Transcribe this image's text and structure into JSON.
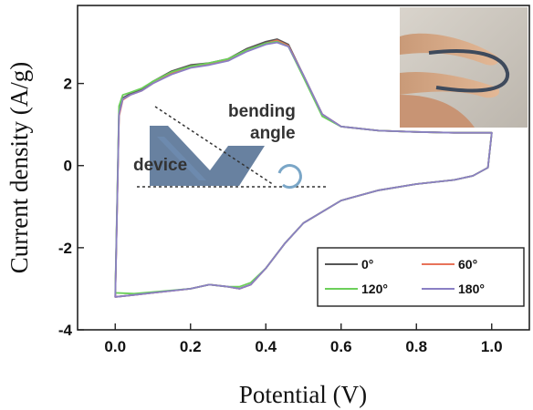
{
  "chart_data": {
    "type": "line",
    "xlabel": "Potential (V)",
    "ylabel": "Current density (A/g)",
    "xlim": [
      -0.1,
      1.1
    ],
    "ylim": [
      -4,
      3.9
    ],
    "xticks": [
      "0.0",
      "0.2",
      "0.4",
      "0.6",
      "0.8",
      "1.0"
    ],
    "yticks": [
      "-4",
      "-2",
      "0",
      "2"
    ],
    "grid": false,
    "legend_position": "bottom-right",
    "inset_annotations": {
      "device_label": "device",
      "angle_label_line1": "bending",
      "angle_label_line2": "angle"
    },
    "photo_inset": "photo of bent flexible device held between fingers (top-right)",
    "series": [
      {
        "name": "0°",
        "color": "#555555",
        "upper": {
          "x": [
            0.0,
            0.01,
            0.02,
            0.04,
            0.07,
            0.1,
            0.15,
            0.2,
            0.25,
            0.3,
            0.35,
            0.4,
            0.43,
            0.46,
            0.5,
            0.55,
            0.6,
            0.7,
            0.8,
            0.9,
            0.98,
            1.0
          ],
          "y": [
            -3.2,
            1.3,
            1.65,
            1.75,
            1.85,
            2.05,
            2.3,
            2.45,
            2.5,
            2.6,
            2.85,
            3.02,
            3.08,
            2.95,
            2.2,
            1.25,
            0.95,
            0.85,
            0.82,
            0.8,
            0.8,
            0.8
          ]
        },
        "lower": {
          "x": [
            1.0,
            0.99,
            0.95,
            0.9,
            0.8,
            0.7,
            0.6,
            0.5,
            0.45,
            0.4,
            0.36,
            0.33,
            0.3,
            0.25,
            0.2,
            0.1,
            0.05,
            0.0
          ],
          "y": [
            0.8,
            -0.05,
            -0.25,
            -0.35,
            -0.45,
            -0.6,
            -0.85,
            -1.4,
            -1.9,
            -2.5,
            -2.9,
            -3.0,
            -2.95,
            -2.9,
            -3.0,
            -3.1,
            -3.15,
            -3.2
          ]
        }
      },
      {
        "name": "60°",
        "color": "#e8735a",
        "upper": {
          "x": [
            0.0,
            0.01,
            0.02,
            0.04,
            0.07,
            0.1,
            0.15,
            0.2,
            0.25,
            0.3,
            0.35,
            0.4,
            0.43,
            0.46,
            0.5,
            0.55,
            0.6,
            0.7,
            0.8,
            0.9,
            0.98,
            1.0
          ],
          "y": [
            -3.2,
            1.2,
            1.6,
            1.72,
            1.82,
            2.0,
            2.25,
            2.42,
            2.48,
            2.58,
            2.82,
            2.98,
            3.05,
            2.92,
            2.2,
            1.25,
            0.95,
            0.85,
            0.82,
            0.8,
            0.8,
            0.8
          ]
        },
        "lower": {
          "x": [
            1.0,
            0.99,
            0.95,
            0.9,
            0.8,
            0.7,
            0.6,
            0.5,
            0.45,
            0.4,
            0.36,
            0.33,
            0.3,
            0.25,
            0.2,
            0.1,
            0.05,
            0.0
          ],
          "y": [
            0.8,
            -0.05,
            -0.25,
            -0.35,
            -0.45,
            -0.6,
            -0.85,
            -1.4,
            -1.9,
            -2.5,
            -2.9,
            -3.0,
            -2.95,
            -2.9,
            -3.0,
            -3.1,
            -3.15,
            -3.2
          ]
        }
      },
      {
        "name": "120°",
        "color": "#6ccf5a",
        "upper": {
          "x": [
            0.0,
            0.01,
            0.02,
            0.04,
            0.07,
            0.1,
            0.15,
            0.2,
            0.25,
            0.3,
            0.35,
            0.4,
            0.43,
            0.46,
            0.5,
            0.55,
            0.6,
            0.7,
            0.8,
            0.9,
            0.98,
            1.0
          ],
          "y": [
            -3.1,
            1.45,
            1.72,
            1.78,
            1.88,
            2.05,
            2.28,
            2.42,
            2.5,
            2.6,
            2.82,
            2.98,
            3.02,
            2.9,
            2.15,
            1.2,
            0.95,
            0.85,
            0.82,
            0.8,
            0.8,
            0.8
          ]
        },
        "lower": {
          "x": [
            1.0,
            0.99,
            0.95,
            0.9,
            0.8,
            0.7,
            0.6,
            0.5,
            0.45,
            0.4,
            0.36,
            0.33,
            0.3,
            0.25,
            0.2,
            0.1,
            0.05,
            0.0
          ],
          "y": [
            0.8,
            -0.05,
            -0.25,
            -0.35,
            -0.45,
            -0.6,
            -0.85,
            -1.4,
            -1.9,
            -2.5,
            -2.85,
            -2.95,
            -2.95,
            -2.9,
            -3.0,
            -3.08,
            -3.12,
            -3.1
          ]
        }
      },
      {
        "name": "180°",
        "color": "#8a7fc4",
        "upper": {
          "x": [
            0.0,
            0.01,
            0.02,
            0.04,
            0.07,
            0.1,
            0.15,
            0.2,
            0.25,
            0.3,
            0.35,
            0.4,
            0.43,
            0.46,
            0.5,
            0.55,
            0.6,
            0.7,
            0.8,
            0.9,
            0.98,
            1.0
          ],
          "y": [
            -3.2,
            1.25,
            1.62,
            1.72,
            1.82,
            2.0,
            2.22,
            2.38,
            2.45,
            2.55,
            2.78,
            2.95,
            3.0,
            2.9,
            2.2,
            1.25,
            0.95,
            0.85,
            0.82,
            0.8,
            0.8,
            0.8
          ]
        },
        "lower": {
          "x": [
            1.0,
            0.99,
            0.95,
            0.9,
            0.8,
            0.7,
            0.6,
            0.5,
            0.45,
            0.4,
            0.36,
            0.33,
            0.3,
            0.25,
            0.2,
            0.1,
            0.05,
            0.0
          ],
          "y": [
            0.8,
            -0.05,
            -0.25,
            -0.35,
            -0.45,
            -0.6,
            -0.85,
            -1.4,
            -1.9,
            -2.5,
            -2.9,
            -3.0,
            -2.95,
            -2.9,
            -3.0,
            -3.1,
            -3.15,
            -3.2
          ]
        }
      }
    ]
  }
}
